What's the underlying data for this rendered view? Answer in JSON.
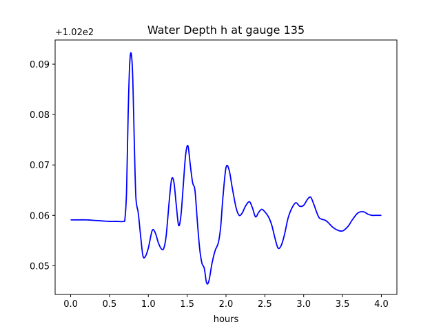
{
  "chart_data": {
    "type": "line",
    "title": "Water Depth h at gauge 135",
    "xlabel": "hours",
    "ylabel": "",
    "y_offset_label": "+1.02e2",
    "xlim": [
      -0.2,
      4.2
    ],
    "ylim": [
      0.0443,
      0.0948
    ],
    "x_ticks": [
      0.0,
      0.5,
      1.0,
      1.5,
      2.0,
      2.5,
      3.0,
      3.5,
      4.0
    ],
    "x_tick_labels": [
      "0.0",
      "0.5",
      "1.0",
      "1.5",
      "2.0",
      "2.5",
      "3.0",
      "3.5",
      "4.0"
    ],
    "y_ticks": [
      0.05,
      0.06,
      0.07,
      0.08,
      0.09
    ],
    "y_tick_labels": [
      "0.05",
      "0.06",
      "0.07",
      "0.08",
      "0.09"
    ],
    "grid": false,
    "series": [
      {
        "color": "#0000ff",
        "x": [
          0.0,
          0.1,
          0.2,
          0.3,
          0.4,
          0.5,
          0.6,
          0.68,
          0.7,
          0.72,
          0.74,
          0.76,
          0.78,
          0.8,
          0.82,
          0.84,
          0.87,
          0.9,
          0.93,
          0.96,
          1.0,
          1.05,
          1.09,
          1.13,
          1.17,
          1.2,
          1.23,
          1.27,
          1.3,
          1.33,
          1.36,
          1.39,
          1.42,
          1.45,
          1.48,
          1.51,
          1.54,
          1.57,
          1.6,
          1.63,
          1.66,
          1.69,
          1.72,
          1.75,
          1.78,
          1.82,
          1.86,
          1.9,
          1.93,
          1.96,
          2.0,
          2.04,
          2.08,
          2.13,
          2.17,
          2.21,
          2.25,
          2.3,
          2.34,
          2.38,
          2.42,
          2.46,
          2.5,
          2.55,
          2.59,
          2.63,
          2.67,
          2.71,
          2.75,
          2.8,
          2.85,
          2.9,
          2.95,
          3.0,
          3.05,
          3.09,
          3.13,
          3.17,
          3.2,
          3.24,
          3.28,
          3.32,
          3.37,
          3.43,
          3.5,
          3.57,
          3.63,
          3.7,
          3.77,
          3.83,
          3.88,
          3.92,
          3.96,
          4.0
        ],
        "values": [
          0.0591,
          0.0591,
          0.0591,
          0.059,
          0.0589,
          0.0588,
          0.0588,
          0.0588,
          0.0595,
          0.065,
          0.08,
          0.09,
          0.0921,
          0.087,
          0.074,
          0.0635,
          0.0605,
          0.056,
          0.052,
          0.0518,
          0.0535,
          0.057,
          0.0565,
          0.0545,
          0.0533,
          0.0535,
          0.056,
          0.063,
          0.0672,
          0.0665,
          0.062,
          0.058,
          0.06,
          0.066,
          0.072,
          0.0738,
          0.07,
          0.0665,
          0.065,
          0.059,
          0.0535,
          0.0505,
          0.0495,
          0.0466,
          0.047,
          0.0505,
          0.053,
          0.0545,
          0.0575,
          0.0635,
          0.0695,
          0.069,
          0.0655,
          0.0615,
          0.06,
          0.0605,
          0.0618,
          0.0627,
          0.0615,
          0.0597,
          0.0606,
          0.0612,
          0.0607,
          0.0596,
          0.058,
          0.0555,
          0.0535,
          0.054,
          0.056,
          0.0595,
          0.0615,
          0.0625,
          0.0618,
          0.062,
          0.0632,
          0.0636,
          0.0622,
          0.0605,
          0.0595,
          0.0592,
          0.059,
          0.0585,
          0.0577,
          0.0571,
          0.0569,
          0.0578,
          0.0592,
          0.0605,
          0.0607,
          0.0602,
          0.06,
          0.06,
          0.06,
          0.06
        ]
      }
    ]
  }
}
